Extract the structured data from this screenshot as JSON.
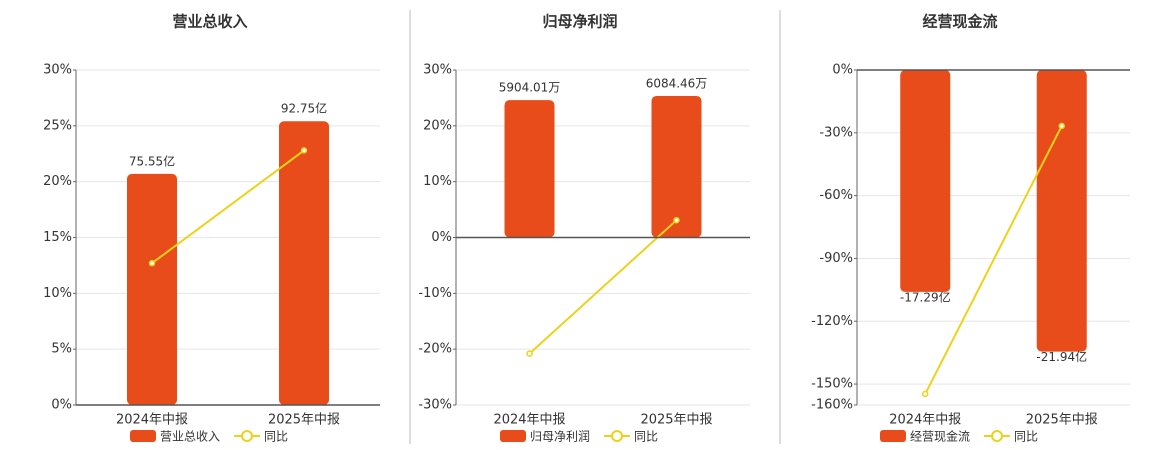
{
  "chart_data": [
    {
      "type": "combo",
      "title": "营业总收入",
      "categories": [
        "2024年中报",
        "2025年中报"
      ],
      "ylim": [
        0,
        30
      ],
      "yticks": [
        {
          "value": 0,
          "label": "0%"
        },
        {
          "value": 5,
          "label": "5%"
        },
        {
          "value": 10,
          "label": "10%"
        },
        {
          "value": 15,
          "label": "15%"
        },
        {
          "value": 20,
          "label": "20%"
        },
        {
          "value": 25,
          "label": "25%"
        },
        {
          "value": 30,
          "label": "30%"
        }
      ],
      "y2lim": [
        0,
        109.5
      ],
      "grid": true,
      "series": [
        {
          "name": "营业总收入",
          "type": "bar",
          "axis": "y2",
          "color": "#e84c1a",
          "values": [
            75.55,
            92.75
          ],
          "value_labels": [
            "75.55亿",
            "92.75亿"
          ]
        },
        {
          "name": "同比",
          "type": "line",
          "color": "#ecd21a",
          "values": [
            12.7,
            22.8
          ]
        }
      ]
    },
    {
      "type": "combo",
      "title": "归母净利润",
      "categories": [
        "2024年中报",
        "2025年中报"
      ],
      "ylim": [
        -30,
        30
      ],
      "yticks": [
        {
          "value": -30,
          "label": "-30%"
        },
        {
          "value": -20,
          "label": "-20%"
        },
        {
          "value": -10,
          "label": "-10%"
        },
        {
          "value": 0,
          "label": "0%"
        },
        {
          "value": 10,
          "label": "10%"
        },
        {
          "value": 20,
          "label": "20%"
        },
        {
          "value": 30,
          "label": "30%"
        }
      ],
      "y2lim": [
        -7200,
        7200
      ],
      "grid": true,
      "series": [
        {
          "name": "归母净利润",
          "type": "bar",
          "axis": "y2",
          "color": "#e84c1a",
          "values": [
            5904.01,
            6084.46
          ],
          "value_labels": [
            "5904.01万",
            "6084.46万"
          ]
        },
        {
          "name": "同比",
          "type": "line",
          "color": "#ecd21a",
          "values": [
            -20.8,
            3.1
          ]
        }
      ]
    },
    {
      "type": "combo",
      "title": "经营现金流",
      "categories": [
        "2024年中报",
        "2025年中报"
      ],
      "ylim": [
        -160,
        0
      ],
      "yticks": [
        {
          "value": -160,
          "label": "-160%"
        },
        {
          "value": -150,
          "label": "-150%"
        },
        {
          "value": -120,
          "label": "-120%"
        },
        {
          "value": -90,
          "label": "-90%"
        },
        {
          "value": -60,
          "label": "-60%"
        },
        {
          "value": -30,
          "label": "-30%"
        },
        {
          "value": 0,
          "label": "0%"
        }
      ],
      "y2lim": [
        -26.1,
        0
      ],
      "grid": true,
      "series": [
        {
          "name": "经营现金流",
          "type": "bar",
          "axis": "y2",
          "color": "#e84c1a",
          "values": [
            -17.29,
            -21.94
          ],
          "value_labels": [
            "-17.29亿",
            "-21.94亿"
          ]
        },
        {
          "name": "同比",
          "type": "line",
          "color": "#ecd21a",
          "values": [
            -154.7,
            -26.7
          ]
        }
      ]
    }
  ]
}
